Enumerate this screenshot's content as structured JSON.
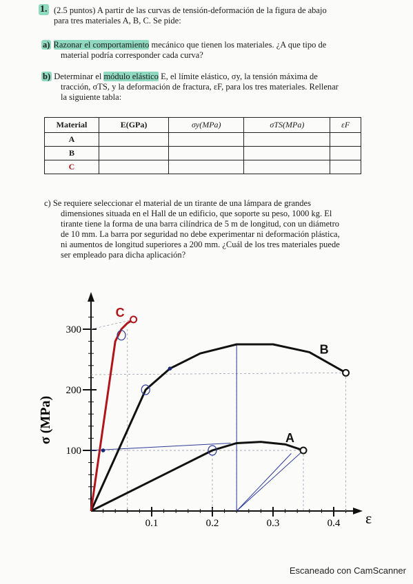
{
  "question": {
    "number": "1.",
    "intro_line1": "(2.5 puntos) A partir de las curvas de tensión-deformación de la figura de abajo",
    "intro_line2": "para tres materiales A, B, C. Se pide:"
  },
  "part_a": {
    "label": "a)",
    "text_hl": "Razonar el comportamiento",
    "text_rest": " mecánico que tienen los materiales. ¿A que tipo de",
    "line2": "material podría corresponder cada curva?"
  },
  "part_b": {
    "label": "b)",
    "pre": "Determinar el ",
    "hl": "módulo elástico",
    "line1_rest": " E, el límite elástico, σy, la tensión máxima de",
    "line2": "tracción, σTS, y la deformación de fractura, εF, para los tres materiales. Rellenar",
    "line3": "la siguiente tabla:"
  },
  "table": {
    "headers": [
      "Material",
      "E(GPa)",
      "σy(MPa)",
      "σTS(MPa)",
      "εF"
    ],
    "rows": [
      "A",
      "B",
      "C"
    ]
  },
  "part_c": {
    "label": "c)",
    "line1": "Se requiere seleccionar el material de un tirante de una lámpara de grandes",
    "line2": "dimensiones situada en el Hall de un edificio, que soporte su peso, 1000 kg. El",
    "line3": "tirante tiene la forma de una barra cilíndrica de 5 m de longitud, con un diámetro",
    "line4": "de 10 mm. La barra por seguridad no debe experimentar ni deformación plástica,",
    "line5": "ni aumentos de longitud superiores a 200 mm. ¿Cuál de los tres materiales puede",
    "line6": "ser empleado para dicha aplicación?"
  },
  "chart_data": {
    "type": "line",
    "ylabel": "σ (MPa)",
    "xlabel": "ε",
    "xlim": [
      0,
      0.45
    ],
    "ylim": [
      0,
      340
    ],
    "x_ticks": [
      "0.1",
      "0.2",
      "0.3",
      "0.4"
    ],
    "y_ticks": [
      "100",
      "200",
      "300"
    ],
    "series": [
      {
        "name": "A",
        "color": "#111111",
        "x": [
          0,
          0.2,
          0.24,
          0.28,
          0.32,
          0.35
        ],
        "y": [
          0,
          100,
          112,
          114,
          110,
          100
        ]
      },
      {
        "name": "B",
        "color": "#111111",
        "x": [
          0,
          0.09,
          0.13,
          0.18,
          0.24,
          0.3,
          0.36,
          0.42
        ],
        "y": [
          0,
          200,
          235,
          260,
          275,
          275,
          262,
          228
        ]
      },
      {
        "name": "C",
        "color": "#b0151b",
        "x": [
          0,
          0.04,
          0.05,
          0.06,
          0.07
        ],
        "y": [
          0,
          280,
          300,
          310,
          316
        ]
      }
    ]
  },
  "footer": {
    "watermark": "Escaneado con CamScanner"
  }
}
